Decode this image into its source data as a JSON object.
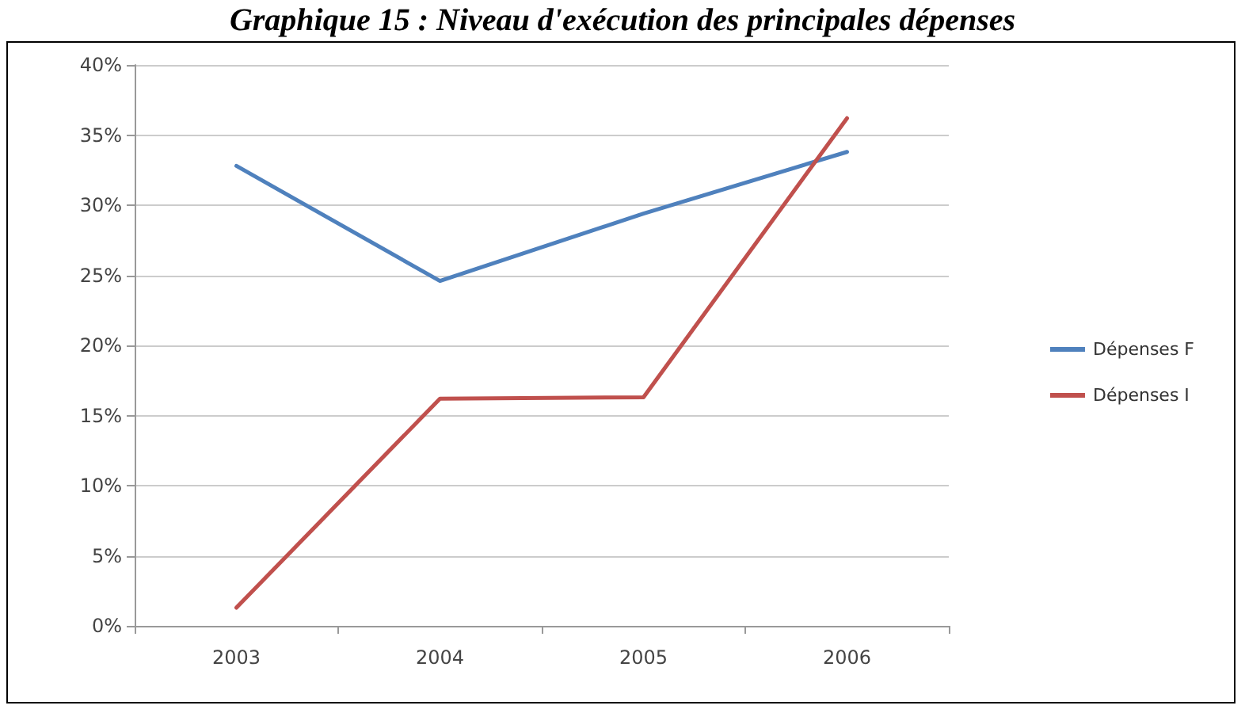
{
  "chart_data": {
    "type": "line",
    "title": "Graphique 15 : Niveau d'exécution des principales dépenses",
    "categories": [
      "2003",
      "2004",
      "2005",
      "2006"
    ],
    "series": [
      {
        "name": "Dépenses F",
        "color": "#4f81bd",
        "values": [
          32.8,
          24.6,
          29.4,
          33.8
        ]
      },
      {
        "name": "Dépenses I",
        "color": "#c0504d",
        "values": [
          1.3,
          16.2,
          16.3,
          36.2
        ]
      }
    ],
    "ylim": [
      0,
      40
    ],
    "yticks": [
      {
        "value": 0,
        "label": "0%"
      },
      {
        "value": 5,
        "label": "5%"
      },
      {
        "value": 10,
        "label": "10%"
      },
      {
        "value": 15,
        "label": "15%"
      },
      {
        "value": 20,
        "label": "20%"
      },
      {
        "value": 25,
        "label": "25%"
      },
      {
        "value": 30,
        "label": "30%"
      },
      {
        "value": 35,
        "label": "35%"
      },
      {
        "value": 40,
        "label": "40%"
      }
    ],
    "grid": "y",
    "legend": "right",
    "marker": "none",
    "line_style": "solid"
  }
}
